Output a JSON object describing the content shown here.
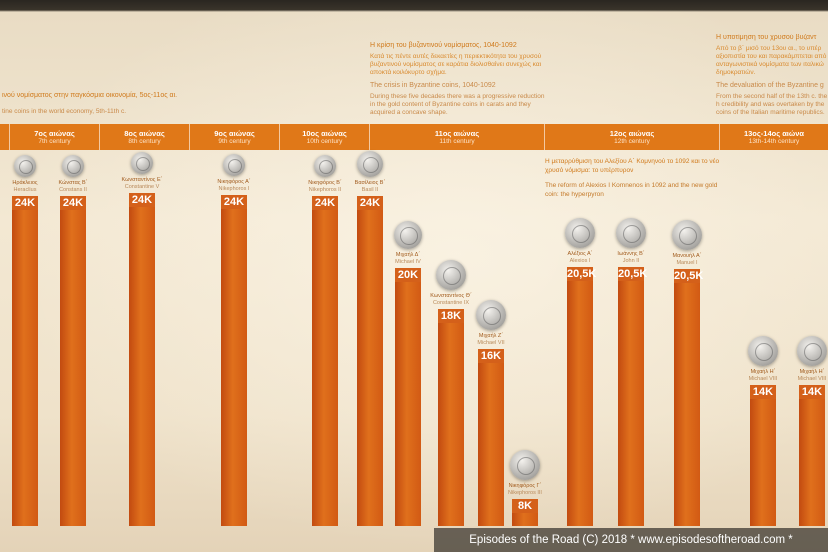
{
  "headers": {
    "left_gr": "ινού νομίσματος στην παγκόσμια οικονομία, 5ος-11ος αι.",
    "left_en": "tine coins in the world economy, 5th-11th c.",
    "mid_gr_title": "Η κρίση του βυζαντινού νομίσματος, 1040-1092",
    "mid_gr_body": "Κατά τις πέντε αυτές δεκαετίες η περιεκτικότητα του χρυσού βυζαντινού νομίσματος σε καράτια διολισθαίνει συνεχώς και αποκτά κοιλόκυρτο σχήμα.",
    "mid_en_title": "The crisis in Byzantine coins, 1040-1092",
    "mid_en_body": "During these five decades there was a progressive reduction in the gold content of Byzantine coins in carats and they acquired a concave shape.",
    "right_gr_title": "Η υποτίμηση του χρυσού βυζαντ",
    "right_gr_body": "Από το β΄ μισό του 13ου αι., το υπέρ αξιοπιστία του και παρακάμπτεται από ανταγωνιστικά νομίσματα των ιταλικώ δημοκρατιών.",
    "right_en_title": "The devaluation of the Byzantine g",
    "right_en_body": "From the second half of the 13th c. the h credibility and was overtaken by the coins of the Italian maritime republics."
  },
  "centuries": [
    {
      "gr": "",
      "en": ""
    },
    {
      "gr": "7ος αιώνας",
      "en": "7th century"
    },
    {
      "gr": "8ος αιώνας",
      "en": "8th century"
    },
    {
      "gr": "9ος αιώνας",
      "en": "9th century"
    },
    {
      "gr": "10ος αιώνας",
      "en": "10th century"
    },
    {
      "gr": "11ος αιώνας",
      "en": "11th century"
    },
    {
      "gr": "12ος αιώνας",
      "en": "12th century"
    },
    {
      "gr": "13ος-14ος αιώνα",
      "en": "13th-14th century"
    }
  ],
  "coins": [
    {
      "gr": "Ηράκλειος",
      "en": "Heraclius",
      "carat": "24K",
      "value": 24
    },
    {
      "gr": "Κώνστας Β΄",
      "en": "Constans II",
      "carat": "24K",
      "value": 24
    },
    {
      "gr": "Κωνσταντίνος Ε΄",
      "en": "Constantine V",
      "carat": "24K",
      "value": 24
    },
    {
      "gr": "Νικηφόρος Α΄",
      "en": "Nikephoros I",
      "carat": "24K",
      "value": 24
    },
    {
      "gr": "Νικηφόρος Β΄",
      "en": "Nikephoros II",
      "carat": "24K",
      "value": 24
    },
    {
      "gr": "Βασίλειος Β΄",
      "en": "Basil II",
      "carat": "24K",
      "value": 24
    },
    {
      "gr": "Μιχαήλ Δ΄",
      "en": "Michael IV",
      "carat": "20K",
      "value": 20
    },
    {
      "gr": "Κωνσταντίνος Θ΄",
      "en": "Constantine IX",
      "carat": "18K",
      "value": 18
    },
    {
      "gr": "Μιχαήλ Ζ΄",
      "en": "Michael VII",
      "carat": "16K",
      "value": 16
    },
    {
      "gr": "Νικηφόρος Γ΄",
      "en": "Nikephoros III",
      "carat": "8K",
      "value": 8
    },
    {
      "gr": "Αλέξιος Α΄",
      "en": "Alexios I",
      "carat": "20,5K",
      "value": 20.5
    },
    {
      "gr": "Ιωάννης Β΄",
      "en": "John II",
      "carat": "20,5K",
      "value": 20.5
    },
    {
      "gr": "Μανουήλ Α΄",
      "en": "Manuel I",
      "carat": "20,5K",
      "value": 20.5
    },
    {
      "gr": "Μιχαήλ Η΄",
      "en": "Michael VIII",
      "carat": "14K",
      "value": 14
    },
    {
      "gr": "Μιχαήλ Η΄",
      "en": "Michael VIII",
      "carat": "14K",
      "value": 14
    }
  ],
  "reform_note": {
    "gr": "Η μεταρρύθμιση του Αλεξίου Α΄ Κομνηνού το 1092 και το νέο χρυσό νόμισμα: το υπέρπυρον",
    "en": "The reform of Alexios I Komnenos in 1092 and the new gold coin: the hyperpyron"
  },
  "watermark": "Episodes of the Road (C) 2018 * www.episodesoftheroad.com *"
}
